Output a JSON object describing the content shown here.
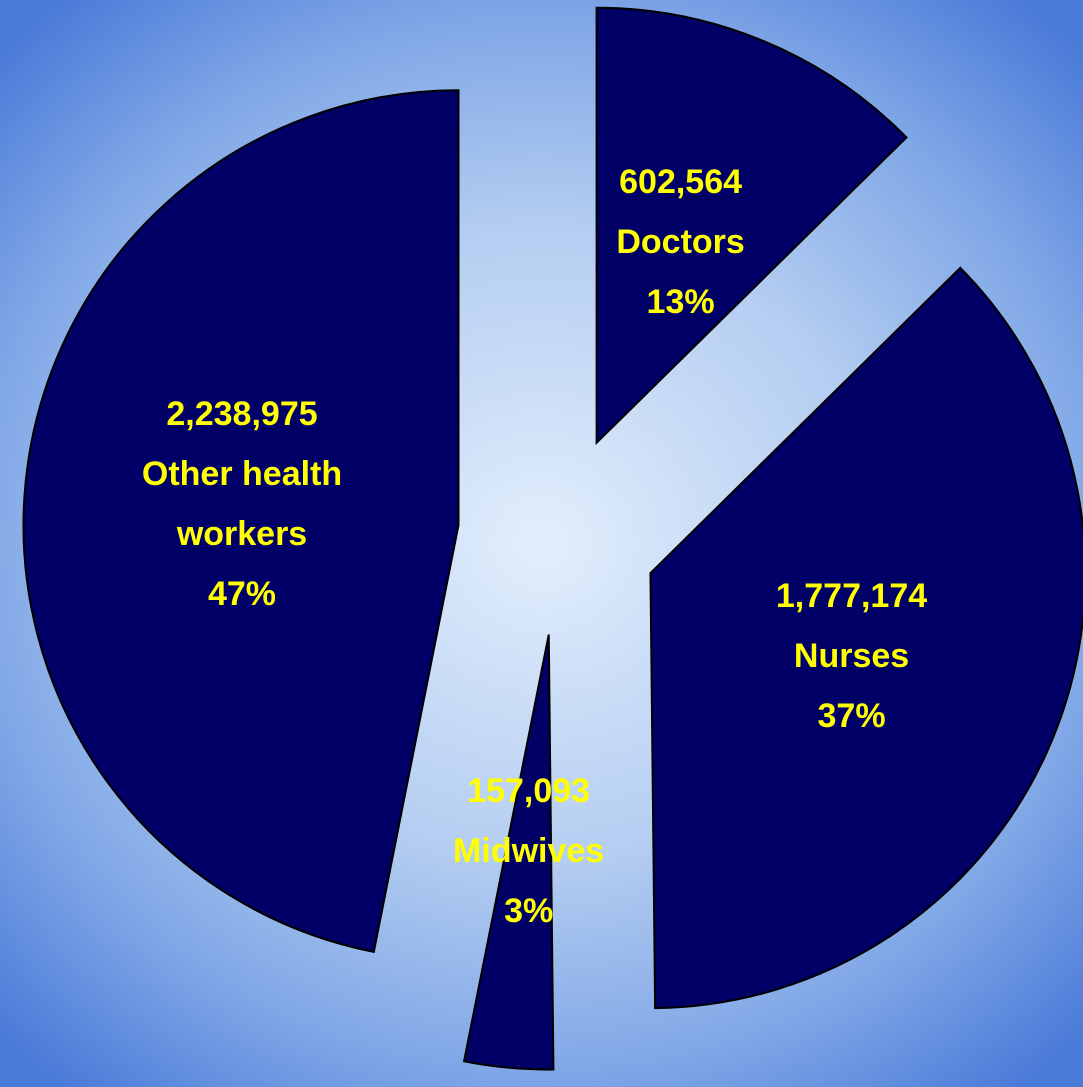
{
  "chart_data": {
    "type": "pie",
    "categories": [
      "Doctors",
      "Nurses",
      "Midwives",
      "Other health workers"
    ],
    "values": [
      602564,
      1777174,
      157093,
      2238975
    ],
    "value_labels": [
      "602,564",
      "1,777,174",
      "157,093",
      "2,238,975"
    ],
    "percent_labels": [
      "13%",
      "37%",
      "3%",
      "47%"
    ],
    "color": "#000066",
    "label_color": "#ffff00"
  }
}
